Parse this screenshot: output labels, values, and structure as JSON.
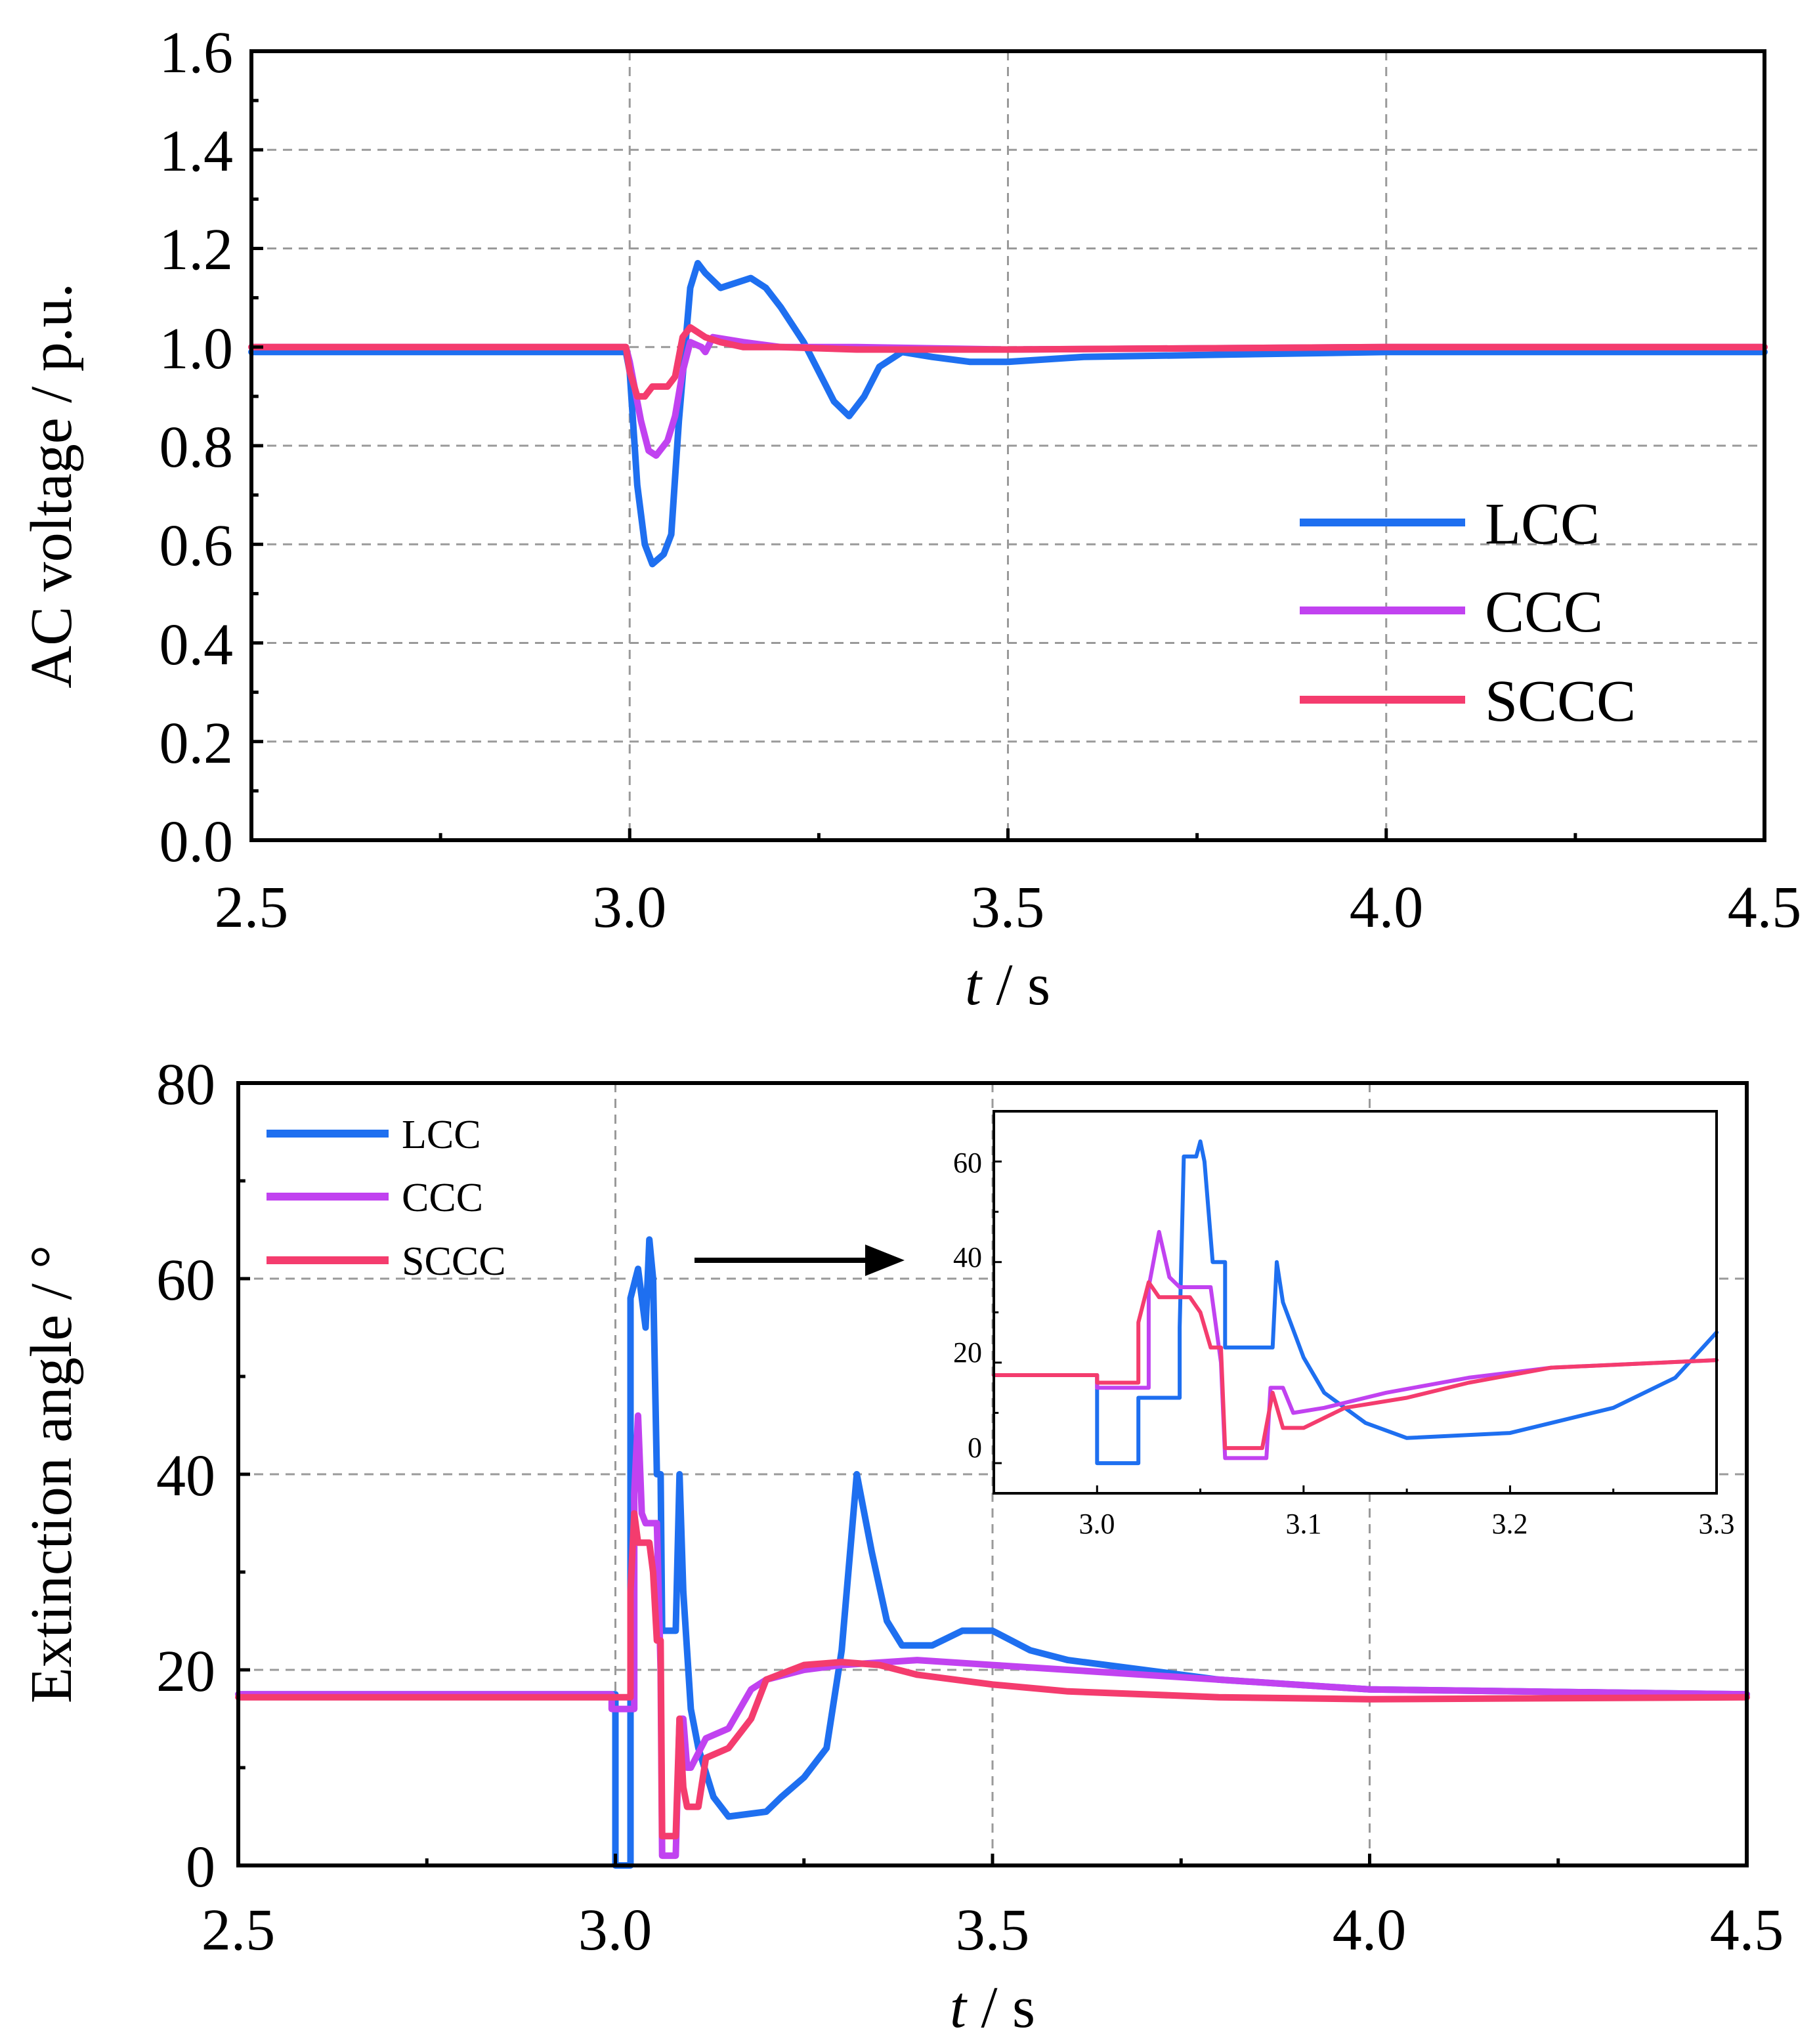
{
  "colors": {
    "LCC": "#1e6ff0",
    "CCC": "#c142f0",
    "SCCC": "#f43c6e",
    "grid": "#9a9a9a",
    "axis": "#000000"
  },
  "chart_data": [
    {
      "type": "line",
      "id": "top",
      "xlabel_italic": "t",
      "xlabel_rest": " / s",
      "ylabel": "AC voltage / p.u.",
      "xlim": [
        2.5,
        4.5
      ],
      "ylim": [
        0.0,
        1.6
      ],
      "xticks": [
        "2.5",
        "3.0",
        "3.5",
        "4.0",
        "4.5"
      ],
      "yticks": [
        "0.0",
        "0.2",
        "0.4",
        "0.6",
        "0.8",
        "1.0",
        "1.2",
        "1.4",
        "1.6"
      ],
      "legend_position": "lower-right",
      "series": [
        {
          "name": "LCC",
          "color_key": "LCC",
          "points": [
            [
              2.5,
              0.99
            ],
            [
              2.995,
              0.99
            ],
            [
              3.0,
              0.95
            ],
            [
              3.01,
              0.72
            ],
            [
              3.02,
              0.6
            ],
            [
              3.03,
              0.56
            ],
            [
              3.045,
              0.58
            ],
            [
              3.055,
              0.62
            ],
            [
              3.065,
              0.85
            ],
            [
              3.08,
              1.12
            ],
            [
              3.09,
              1.17
            ],
            [
              3.1,
              1.15
            ],
            [
              3.12,
              1.12
            ],
            [
              3.14,
              1.13
            ],
            [
              3.16,
              1.14
            ],
            [
              3.18,
              1.12
            ],
            [
              3.2,
              1.08
            ],
            [
              3.23,
              1.01
            ],
            [
              3.25,
              0.95
            ],
            [
              3.27,
              0.89
            ],
            [
              3.29,
              0.86
            ],
            [
              3.31,
              0.9
            ],
            [
              3.33,
              0.96
            ],
            [
              3.36,
              0.99
            ],
            [
              3.4,
              0.98
            ],
            [
              3.45,
              0.97
            ],
            [
              3.5,
              0.97
            ],
            [
              3.6,
              0.98
            ],
            [
              3.8,
              0.985
            ],
            [
              4.0,
              0.99
            ],
            [
              4.5,
              0.99
            ]
          ]
        },
        {
          "name": "CCC",
          "color_key": "CCC",
          "points": [
            [
              2.5,
              1.0
            ],
            [
              2.995,
              1.0
            ],
            [
              3.0,
              0.97
            ],
            [
              3.015,
              0.85
            ],
            [
              3.025,
              0.79
            ],
            [
              3.035,
              0.78
            ],
            [
              3.05,
              0.81
            ],
            [
              3.06,
              0.86
            ],
            [
              3.07,
              0.95
            ],
            [
              3.08,
              1.01
            ],
            [
              3.095,
              1.0
            ],
            [
              3.1,
              0.99
            ],
            [
              3.11,
              1.02
            ],
            [
              3.15,
              1.01
            ],
            [
              3.2,
              1.0
            ],
            [
              3.3,
              1.0
            ],
            [
              3.5,
              0.995
            ],
            [
              4.0,
              1.0
            ],
            [
              4.5,
              1.0
            ]
          ]
        },
        {
          "name": "SCCC",
          "color_key": "SCCC",
          "points": [
            [
              2.5,
              1.0
            ],
            [
              2.995,
              1.0
            ],
            [
              3.0,
              0.95
            ],
            [
              3.01,
              0.9
            ],
            [
              3.02,
              0.9
            ],
            [
              3.03,
              0.92
            ],
            [
              3.05,
              0.92
            ],
            [
              3.06,
              0.94
            ],
            [
              3.07,
              1.02
            ],
            [
              3.08,
              1.04
            ],
            [
              3.09,
              1.03
            ],
            [
              3.1,
              1.02
            ],
            [
              3.12,
              1.01
            ],
            [
              3.15,
              1.0
            ],
            [
              3.2,
              1.0
            ],
            [
              3.3,
              0.995
            ],
            [
              3.5,
              0.995
            ],
            [
              4.0,
              1.0
            ],
            [
              4.5,
              1.0
            ]
          ]
        }
      ]
    },
    {
      "type": "line",
      "id": "bottom",
      "xlabel_italic": "t",
      "xlabel_rest": " / s",
      "ylabel": "Extinction angle / °",
      "xlim": [
        2.5,
        4.5
      ],
      "ylim": [
        0,
        80
      ],
      "xticks": [
        "2.5",
        "3.0",
        "3.5",
        "4.0",
        "4.5"
      ],
      "yticks": [
        "0",
        "20",
        "40",
        "60",
        "80"
      ],
      "legend_position": "top-left",
      "series": [
        {
          "name": "LCC",
          "color_key": "LCC",
          "points": [
            [
              2.5,
              17.5
            ],
            [
              3.0,
              17.5
            ],
            [
              3.0,
              0
            ],
            [
              3.02,
              0
            ],
            [
              3.02,
              58
            ],
            [
              3.03,
              61
            ],
            [
              3.04,
              55
            ],
            [
              3.045,
              64
            ],
            [
              3.05,
              60
            ],
            [
              3.055,
              40
            ],
            [
              3.06,
              40
            ],
            [
              3.062,
              24
            ],
            [
              3.08,
              24
            ],
            [
              3.085,
              40
            ],
            [
              3.09,
              28
            ],
            [
              3.1,
              16
            ],
            [
              3.11,
              12
            ],
            [
              3.13,
              7
            ],
            [
              3.15,
              5
            ],
            [
              3.2,
              5.5
            ],
            [
              3.22,
              7
            ],
            [
              3.25,
              9
            ],
            [
              3.28,
              12
            ],
            [
              3.3,
              22
            ],
            [
              3.32,
              40
            ],
            [
              3.34,
              32
            ],
            [
              3.36,
              25
            ],
            [
              3.38,
              22.5
            ],
            [
              3.42,
              22.5
            ],
            [
              3.46,
              24
            ],
            [
              3.5,
              24
            ],
            [
              3.55,
              22
            ],
            [
              3.6,
              21
            ],
            [
              3.7,
              20
            ],
            [
              3.8,
              19
            ],
            [
              4.0,
              18
            ],
            [
              4.5,
              17.5
            ]
          ]
        },
        {
          "name": "CCC",
          "color_key": "CCC",
          "points": [
            [
              2.5,
              17.5
            ],
            [
              2.995,
              17.5
            ],
            [
              2.995,
              16
            ],
            [
              3.025,
              16
            ],
            [
              3.025,
              38
            ],
            [
              3.03,
              46
            ],
            [
              3.035,
              36
            ],
            [
              3.04,
              35
            ],
            [
              3.055,
              35
            ],
            [
              3.06,
              20
            ],
            [
              3.062,
              1
            ],
            [
              3.08,
              1
            ],
            [
              3.085,
              15
            ],
            [
              3.09,
              15
            ],
            [
              3.095,
              10
            ],
            [
              3.1,
              10
            ],
            [
              3.12,
              13
            ],
            [
              3.15,
              14
            ],
            [
              3.18,
              18
            ],
            [
              3.2,
              19
            ],
            [
              3.25,
              20
            ],
            [
              3.3,
              20.5
            ],
            [
              3.4,
              21
            ],
            [
              3.5,
              20.5
            ],
            [
              3.6,
              20
            ],
            [
              3.8,
              19
            ],
            [
              4.0,
              18
            ],
            [
              4.5,
              17.5
            ]
          ]
        },
        {
          "name": "SCCC",
          "color_key": "SCCC",
          "points": [
            [
              2.5,
              17.2
            ],
            [
              3.0,
              17.2
            ],
            [
              3.02,
              17.2
            ],
            [
              3.02,
              28
            ],
            [
              3.025,
              36
            ],
            [
              3.03,
              33
            ],
            [
              3.045,
              33
            ],
            [
              3.05,
              30
            ],
            [
              3.055,
              23
            ],
            [
              3.06,
              23
            ],
            [
              3.062,
              3
            ],
            [
              3.08,
              3
            ],
            [
              3.085,
              15
            ],
            [
              3.09,
              8
            ],
            [
              3.095,
              6
            ],
            [
              3.11,
              6
            ],
            [
              3.12,
              11
            ],
            [
              3.15,
              12
            ],
            [
              3.18,
              15
            ],
            [
              3.2,
              19
            ],
            [
              3.25,
              20.5
            ],
            [
              3.3,
              20.8
            ],
            [
              3.35,
              20.5
            ],
            [
              3.4,
              19.5
            ],
            [
              3.5,
              18.5
            ],
            [
              3.6,
              17.8
            ],
            [
              3.8,
              17.2
            ],
            [
              4.0,
              17
            ],
            [
              4.5,
              17.2
            ]
          ]
        }
      ]
    },
    {
      "type": "line",
      "id": "inset",
      "xlim": [
        2.95,
        3.3
      ],
      "ylim": [
        -6,
        70
      ],
      "xticks": [
        "3.0",
        "3.1",
        "3.2",
        "3.3"
      ],
      "yticks": [
        "0",
        "20",
        "40",
        "60"
      ],
      "series": [
        {
          "name": "LCC",
          "color_key": "LCC",
          "points": [
            [
              2.95,
              17.5
            ],
            [
              3.0,
              17.5
            ],
            [
              3.0,
              0
            ],
            [
              3.02,
              0
            ],
            [
              3.02,
              13
            ],
            [
              3.04,
              13
            ],
            [
              3.04,
              27
            ],
            [
              3.042,
              61
            ],
            [
              3.048,
              61
            ],
            [
              3.05,
              64
            ],
            [
              3.052,
              60
            ],
            [
              3.056,
              40
            ],
            [
              3.062,
              40
            ],
            [
              3.062,
              23
            ],
            [
              3.085,
              23
            ],
            [
              3.087,
              40
            ],
            [
              3.09,
              32
            ],
            [
              3.1,
              21
            ],
            [
              3.11,
              14
            ],
            [
              3.13,
              8
            ],
            [
              3.15,
              5
            ],
            [
              3.2,
              6
            ],
            [
              3.22,
              8
            ],
            [
              3.25,
              11
            ],
            [
              3.28,
              17
            ],
            [
              3.3,
              26
            ]
          ]
        },
        {
          "name": "CCC",
          "color_key": "CCC",
          "points": [
            [
              2.95,
              17.5
            ],
            [
              3.0,
              17.5
            ],
            [
              3.0,
              15
            ],
            [
              3.025,
              15
            ],
            [
              3.025,
              35
            ],
            [
              3.03,
              46
            ],
            [
              3.035,
              37
            ],
            [
              3.04,
              35
            ],
            [
              3.055,
              35
            ],
            [
              3.06,
              20
            ],
            [
              3.062,
              1
            ],
            [
              3.082,
              1
            ],
            [
              3.084,
              15
            ],
            [
              3.09,
              15
            ],
            [
              3.095,
              10
            ],
            [
              3.11,
              11
            ],
            [
              3.14,
              14
            ],
            [
              3.18,
              17
            ],
            [
              3.22,
              19
            ],
            [
              3.3,
              20.5
            ]
          ]
        },
        {
          "name": "SCCC",
          "color_key": "SCCC",
          "points": [
            [
              2.95,
              17.5
            ],
            [
              3.0,
              17.5
            ],
            [
              3.0,
              16
            ],
            [
              3.02,
              16
            ],
            [
              3.02,
              28
            ],
            [
              3.025,
              36
            ],
            [
              3.03,
              33
            ],
            [
              3.045,
              33
            ],
            [
              3.05,
              30
            ],
            [
              3.055,
              23
            ],
            [
              3.06,
              23
            ],
            [
              3.062,
              3
            ],
            [
              3.08,
              3
            ],
            [
              3.085,
              14
            ],
            [
              3.09,
              7
            ],
            [
              3.1,
              7
            ],
            [
              3.12,
              11
            ],
            [
              3.15,
              13
            ],
            [
              3.18,
              16
            ],
            [
              3.22,
              19
            ],
            [
              3.3,
              20.5
            ]
          ]
        }
      ]
    }
  ]
}
